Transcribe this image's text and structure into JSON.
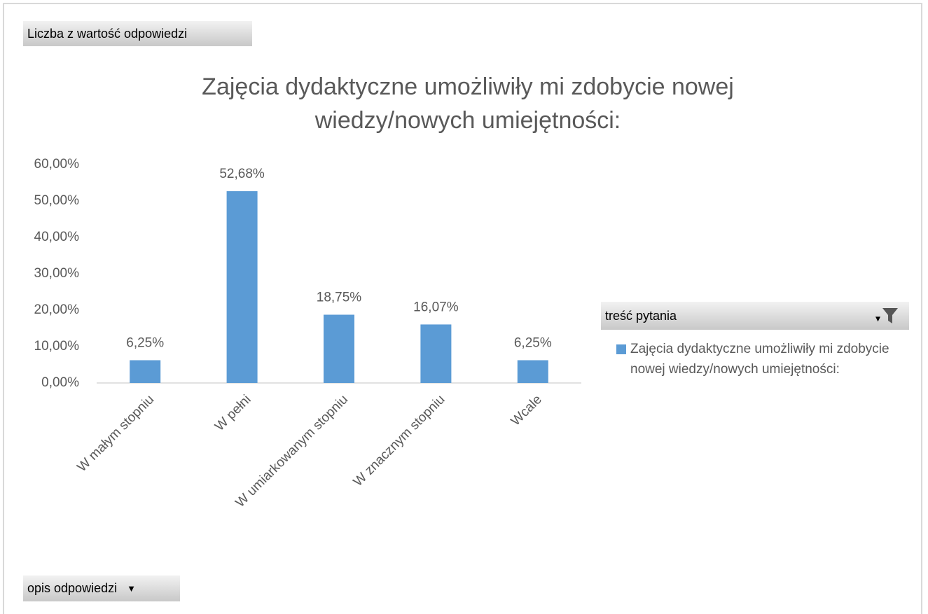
{
  "chart_data": {
    "type": "bar",
    "value_field_button": "Liczba z wartość odpowiedzi",
    "axis_field_button": "opis odpowiedzi",
    "title": [
      "Zajęcia dydaktyczne umożliwiły mi zdobycie nowej",
      "wiedzy/nowych umiejętności:"
    ],
    "categories": [
      "W małym stopniu",
      "W pełni",
      "W umiarkowanym stopniu",
      "W znacznym stopniu",
      "Wcale"
    ],
    "series": [
      {
        "name": "Zajęcia dydaktyczne umożliwiły mi zdobycie nowej wiedzy/nowych umiejętności:",
        "color": "#5b9bd5",
        "values": [
          6.25,
          52.68,
          18.75,
          16.07,
          6.25
        ],
        "value_labels": [
          "6,25%",
          "52,68%",
          "18,75%",
          "16,07%",
          "6,25%"
        ]
      }
    ],
    "ylim": [
      0,
      60
    ],
    "yticks": [
      {
        "value": 0,
        "label": "0,00%"
      },
      {
        "value": 10,
        "label": "10,00%"
      },
      {
        "value": 20,
        "label": "20,00%"
      },
      {
        "value": 30,
        "label": "30,00%"
      },
      {
        "value": 40,
        "label": "40,00%"
      },
      {
        "value": 50,
        "label": "50,00%"
      },
      {
        "value": 60,
        "label": "60,00%"
      }
    ],
    "grid": false,
    "legend_title": "treść pytania",
    "legend": "right"
  }
}
